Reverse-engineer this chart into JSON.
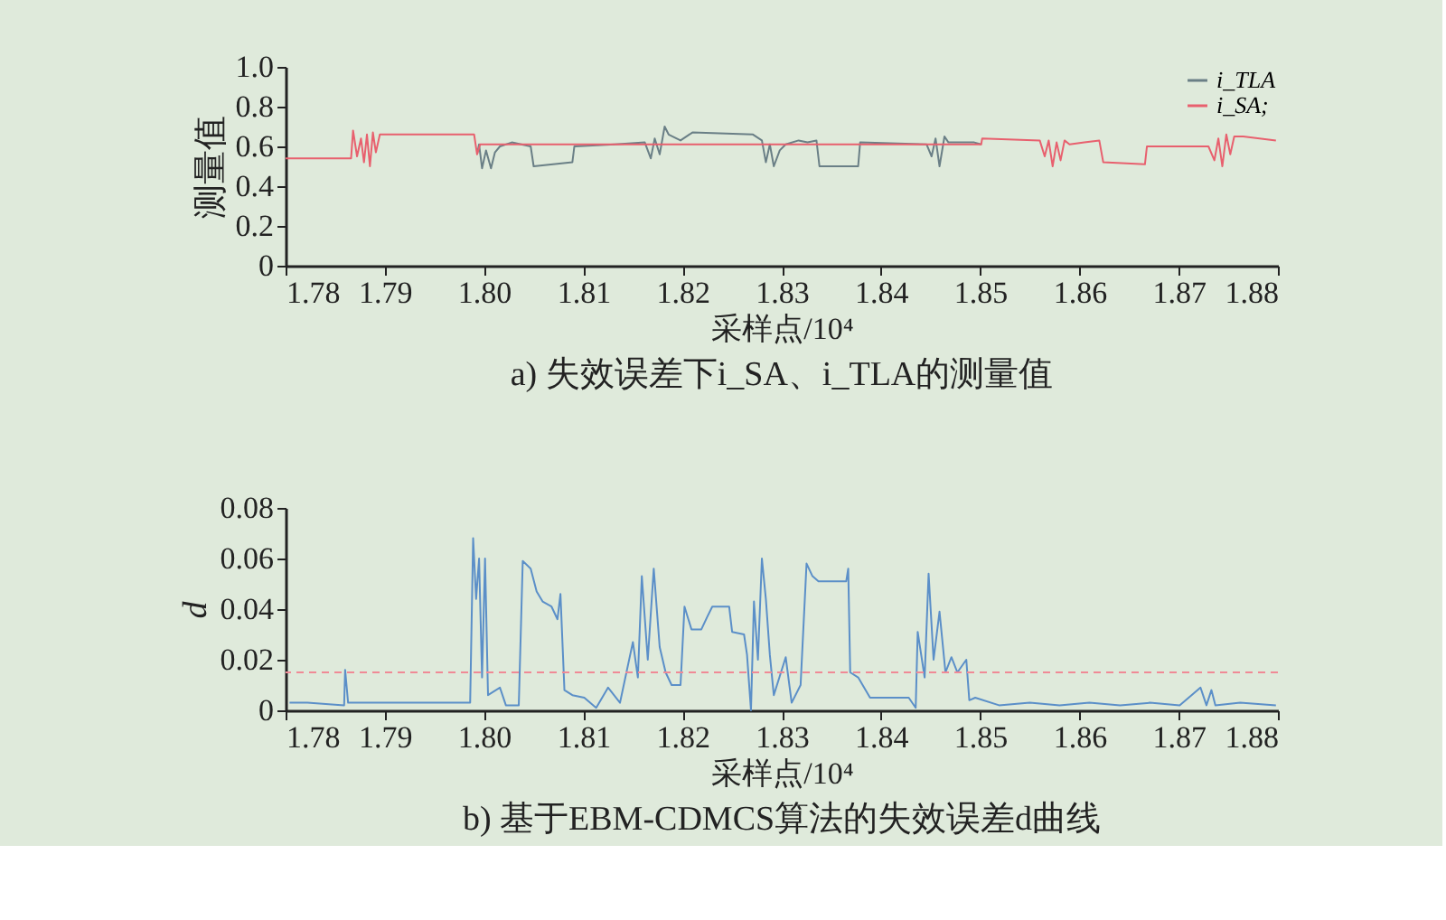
{
  "chart_data": [
    {
      "type": "line",
      "title": "a) 失效误差下i_SA、i_TLA的测量值",
      "xlabel": "采样点/10⁴",
      "ylabel": "测量值",
      "xlim": [
        1.78,
        1.88
      ],
      "xticks": [
        1.78,
        1.79,
        {
          "value": 1.8,
          "label": "1.80"
        },
        1.81,
        1.82,
        1.83,
        1.84,
        1.85,
        1.86,
        1.87,
        1.88
      ],
      "ylim": [
        0,
        1
      ],
      "yticks": [
        0,
        0.2,
        0.4,
        0.6,
        0.8,
        {
          "value": 1,
          "label": "1.0"
        }
      ],
      "grid": false,
      "legend": "top right",
      "series": [
        {
          "name": "i_TLA",
          "color": "#6a7f86",
          "x": [
            1.7993,
            1.7995,
            1.7998,
            1.8002,
            1.8007,
            1.8011,
            1.8016,
            1.8028,
            1.8047,
            1.805,
            1.8089,
            1.8091,
            1.8132,
            1.8162,
            1.8168,
            1.8172,
            1.8177,
            1.8182,
            1.8186,
            1.8198,
            1.821,
            1.8271,
            1.828,
            1.8284,
            1.8288,
            1.8292,
            1.8298,
            1.8304,
            1.8317,
            1.8326,
            1.8335,
            1.8338,
            1.8377,
            1.8379,
            1.8446,
            1.8451,
            1.8455,
            1.8459,
            1.8464,
            1.8468,
            1.8494,
            1.8501
          ],
          "values": [
            0.56,
            0.61,
            0.49,
            0.58,
            0.49,
            0.57,
            0.6,
            0.62,
            0.6,
            0.5,
            0.52,
            0.6,
            0.61,
            0.62,
            0.54,
            0.64,
            0.56,
            0.7,
            0.66,
            0.63,
            0.67,
            0.66,
            0.63,
            0.52,
            0.61,
            0.5,
            0.58,
            0.61,
            0.63,
            0.62,
            0.63,
            0.5,
            0.5,
            0.62,
            0.61,
            0.55,
            0.64,
            0.5,
            0.65,
            0.62,
            0.62,
            0.61
          ]
        },
        {
          "name": "i_SA;",
          "color": "#e8606e",
          "x": [
            1.78,
            1.7866,
            1.7868,
            1.7872,
            1.7876,
            1.7879,
            1.7882,
            1.7885,
            1.7888,
            1.7891,
            1.7895,
            1.799,
            1.7993,
            1.7996,
            1.8501,
            1.8502,
            1.856,
            1.8565,
            1.8569,
            1.8573,
            1.8577,
            1.8581,
            1.8585,
            1.859,
            1.8605,
            1.862,
            1.8624,
            1.8666,
            1.8668,
            1.873,
            1.8736,
            1.874,
            1.8744,
            1.8748,
            1.8752,
            1.8756,
            1.8765,
            1.8798
          ],
          "values": [
            0.54,
            0.54,
            0.68,
            0.55,
            0.64,
            0.52,
            0.66,
            0.5,
            0.67,
            0.57,
            0.66,
            0.66,
            0.56,
            0.61,
            0.61,
            0.64,
            0.63,
            0.55,
            0.63,
            0.5,
            0.62,
            0.53,
            0.63,
            0.61,
            0.62,
            0.63,
            0.52,
            0.51,
            0.6,
            0.6,
            0.53,
            0.64,
            0.5,
            0.66,
            0.56,
            0.65,
            0.65,
            0.63
          ]
        }
      ]
    },
    {
      "type": "line",
      "title": "b) 基于EBM-CDMCS算法的失效误差d曲线",
      "xlabel": "采样点/10⁴",
      "ylabel": "d",
      "xlim": [
        1.78,
        1.88
      ],
      "xticks": [
        1.78,
        1.79,
        {
          "value": 1.8,
          "label": "1.80"
        },
        1.81,
        1.82,
        1.83,
        1.84,
        1.85,
        1.86,
        1.87,
        1.88
      ],
      "ylim": [
        0,
        0.08
      ],
      "yticks": [
        0,
        0.02,
        0.04,
        0.06,
        0.08
      ],
      "grid": false,
      "ref_lines": [
        {
          "axis": "y",
          "value": 0.015,
          "color": "#f08a96",
          "line_style": "dashed"
        }
      ],
      "series": [
        {
          "color": "#5b8fc8",
          "x": [
            1.7804,
            1.7822,
            1.7859,
            1.786,
            1.7863,
            1.7931,
            1.7986,
            1.7989,
            1.7992,
            1.7995,
            1.7998,
            1.8001,
            1.8004,
            1.8016,
            1.8022,
            1.8035,
            1.8039,
            1.8047,
            1.8053,
            1.8059,
            1.8068,
            1.8074,
            1.8077,
            1.8081,
            1.8089,
            1.8101,
            1.8113,
            1.8125,
            1.8137,
            1.815,
            1.8155,
            1.8159,
            1.8165,
            1.8171,
            1.8177,
            1.8183,
            1.8189,
            1.8198,
            1.8202,
            1.8209,
            1.8219,
            1.8225,
            1.823,
            1.8247,
            1.825,
            1.8262,
            1.8265,
            1.8269,
            1.8272,
            1.8276,
            1.828,
            1.8284,
            1.8288,
            1.8292,
            1.8304,
            1.831,
            1.8319,
            1.8325,
            1.8331,
            1.8337,
            1.8365,
            1.8367,
            1.8369,
            1.8377,
            1.8383,
            1.8389,
            1.8428,
            1.8435,
            1.8437,
            1.8444,
            1.8448,
            1.8453,
            1.8459,
            1.8465,
            1.8471,
            1.8477,
            1.8486,
            1.8489,
            1.8495,
            1.8519,
            1.855,
            1.858,
            1.861,
            1.8641,
            1.8671,
            1.8701,
            1.8722,
            1.8728,
            1.8733,
            1.8737,
            1.8762,
            1.8798
          ],
          "values": [
            0.003,
            0.003,
            0.002,
            0.016,
            0.003,
            0.003,
            0.003,
            0.068,
            0.044,
            0.06,
            0.013,
            0.06,
            0.006,
            0.009,
            0.002,
            0.002,
            0.059,
            0.056,
            0.047,
            0.043,
            0.041,
            0.036,
            0.046,
            0.008,
            0.006,
            0.005,
            0.001,
            0.009,
            0.003,
            0.027,
            0.013,
            0.053,
            0.02,
            0.056,
            0.025,
            0.015,
            0.01,
            0.01,
            0.041,
            0.032,
            0.032,
            0.037,
            0.041,
            0.041,
            0.031,
            0.03,
            0.022,
            0.0,
            0.043,
            0.02,
            0.06,
            0.044,
            0.022,
            0.006,
            0.021,
            0.003,
            0.01,
            0.058,
            0.053,
            0.051,
            0.051,
            0.056,
            0.015,
            0.013,
            0.009,
            0.005,
            0.005,
            0.001,
            0.031,
            0.013,
            0.054,
            0.02,
            0.039,
            0.015,
            0.021,
            0.015,
            0.02,
            0.004,
            0.005,
            0.002,
            0.003,
            0.002,
            0.003,
            0.002,
            0.003,
            0.002,
            0.009,
            0.002,
            0.008,
            0.002,
            0.003,
            0.002
          ]
        }
      ]
    }
  ]
}
